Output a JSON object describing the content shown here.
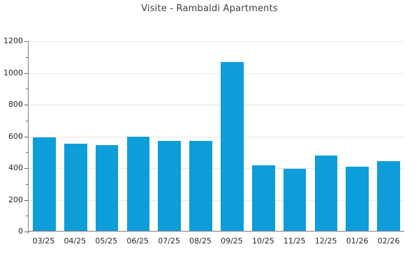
{
  "chart_data": {
    "type": "bar",
    "title": "Visite - Rambaldi Apartments",
    "categories": [
      "03/25",
      "04/25",
      "05/25",
      "06/25",
      "07/25",
      "08/25",
      "09/25",
      "10/25",
      "11/25",
      "12/25",
      "01/26",
      "02/26"
    ],
    "values": [
      593,
      550,
      544,
      597,
      570,
      570,
      1067,
      413,
      394,
      478,
      408,
      443
    ],
    "xlabel": "",
    "ylabel": "",
    "ylim": [
      0,
      1200
    ],
    "yticks": [
      0,
      200,
      400,
      600,
      800,
      1000,
      1200
    ],
    "ytick_minor_step": 100,
    "grid": "horizontal-major",
    "legend": "none",
    "colors": {
      "bar": "#0d9dd9",
      "grid": "#e6e6e6",
      "axis": "#7f7f7f",
      "tick": "#5f5f5f",
      "tick_label": "#262626",
      "title": "#3f3f3f",
      "background": "#ffffff"
    }
  }
}
